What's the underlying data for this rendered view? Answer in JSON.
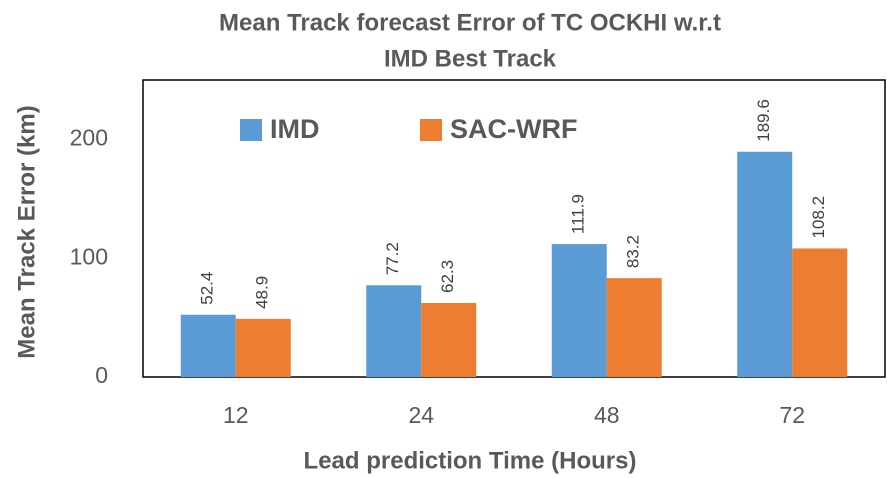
{
  "chart_data": {
    "type": "bar",
    "title": [
      "Mean Track forecast Error of TC OCKHI w.r.t",
      "IMD Best Track"
    ],
    "x_label": "Lead prediction Time (Hours)",
    "y_label": "Mean Track Error (km)",
    "categories": [
      "12",
      "24",
      "48",
      "72"
    ],
    "series": [
      {
        "name": "IMD",
        "color": "#5b9bd5",
        "values": [
          52.4,
          77.2,
          111.9,
          189.6
        ]
      },
      {
        "name": "SAC-WRF",
        "color": "#ed7d31",
        "values": [
          48.9,
          62.3,
          83.2,
          108.2
        ]
      }
    ],
    "ylim": [
      0,
      250
    ],
    "yticks": [
      0,
      100,
      200
    ],
    "grid": false,
    "legend": "top"
  }
}
